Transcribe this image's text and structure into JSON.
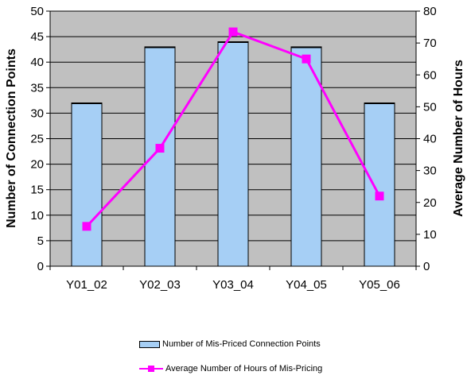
{
  "chart_data": {
    "type": "bar",
    "categories": [
      "Y01_02",
      "Y02_03",
      "Y03_04",
      "Y04_05",
      "Y05_06"
    ],
    "series": [
      {
        "name": "Number of Mis-Priced Connection Points",
        "type": "bar",
        "axis": "left",
        "color": "#a6cff5",
        "values": [
          32,
          43,
          44,
          43,
          32
        ]
      },
      {
        "name": "Average Number of Hours of Mis-Pricing",
        "type": "line",
        "axis": "right",
        "color": "#ff00ff",
        "values": [
          12.5,
          37,
          73.5,
          65,
          22
        ]
      }
    ],
    "ylabel": "Number of Connection Points",
    "y2label": "Average Number of Hours",
    "ylim": [
      0,
      50
    ],
    "y2lim": [
      0,
      80
    ],
    "yticks": [
      "0",
      "5",
      "10",
      "15",
      "20",
      "25",
      "30",
      "35",
      "40",
      "45",
      "50"
    ],
    "y2ticks": [
      "0",
      "10",
      "20",
      "30",
      "40",
      "50",
      "60",
      "70",
      "80"
    ],
    "grid": true,
    "plot_background": "#c0c0c0",
    "legend_position": "bottom"
  }
}
